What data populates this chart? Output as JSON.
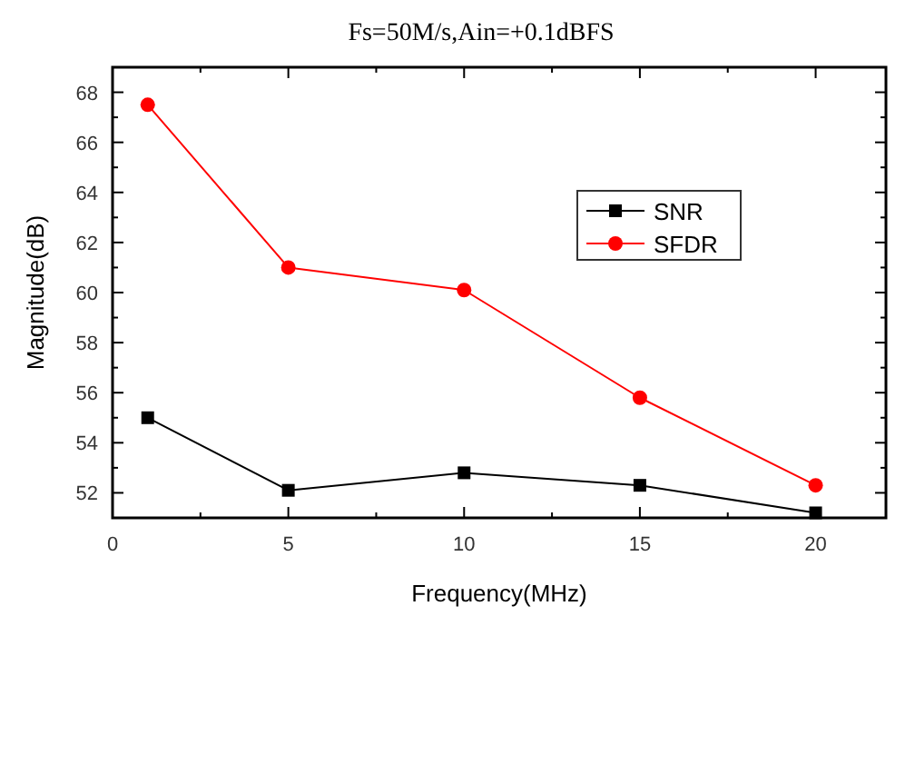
{
  "chart_data": {
    "type": "line",
    "title": "Fs=50M/s,Ain=+0.1dBFS",
    "xlabel": "Frequency(MHz)",
    "ylabel": "Magnitude(dB)",
    "x": [
      1,
      5,
      10,
      15,
      20
    ],
    "series": [
      {
        "name": "SNR",
        "color": "#000000",
        "marker": "square",
        "values": [
          55,
          52.1,
          52.8,
          52.3,
          51.2
        ]
      },
      {
        "name": "SFDR",
        "color": "#ff0000",
        "marker": "circle",
        "values": [
          67.5,
          61,
          60.1,
          55.8,
          52.3
        ]
      }
    ],
    "xlim": [
      0,
      22
    ],
    "xticks": [
      0,
      5,
      10,
      15,
      20
    ],
    "ylim": [
      51,
      69
    ],
    "yticks": [
      52,
      54,
      56,
      58,
      60,
      62,
      64,
      66,
      68
    ],
    "grid": false,
    "legend": "top right"
  }
}
